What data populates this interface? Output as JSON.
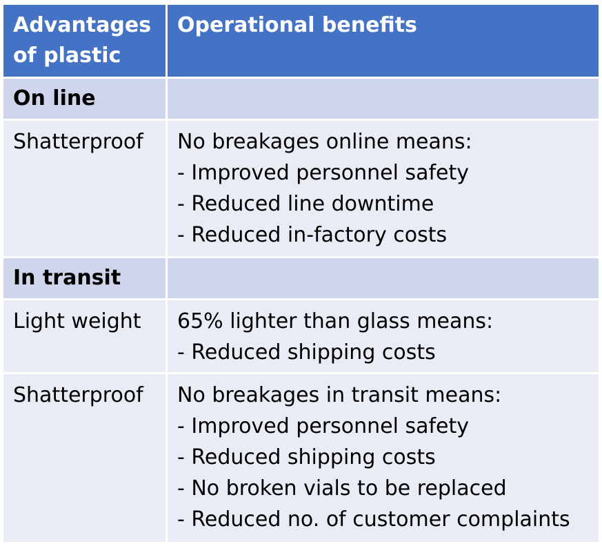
{
  "header": {
    "col1": "Advantages of plastic",
    "col2": "Operational benefits"
  },
  "sections": [
    {
      "title": "On line",
      "rows": [
        {
          "advantage": "Shatterproof",
          "benefits": [
            "No breakages online means:",
            "- Improved personnel safety",
            "- Reduced line downtime",
            "- Reduced in-factory costs"
          ]
        }
      ]
    },
    {
      "title": "In transit",
      "rows": [
        {
          "advantage": "Light weight",
          "benefits": [
            "65% lighter than glass means:",
            "- Reduced shipping costs"
          ]
        },
        {
          "advantage": "Shatterproof",
          "benefits": [
            "No breakages in transit means:",
            "- Improved personnel safety",
            "- Reduced shipping costs",
            "- No broken vials to be replaced",
            "- Reduced no. of customer complaints"
          ]
        }
      ]
    }
  ],
  "colors": {
    "header_bg": "#4472c4",
    "section_bg": "#cfd5ea",
    "row_bg": "#e9ebf5"
  }
}
